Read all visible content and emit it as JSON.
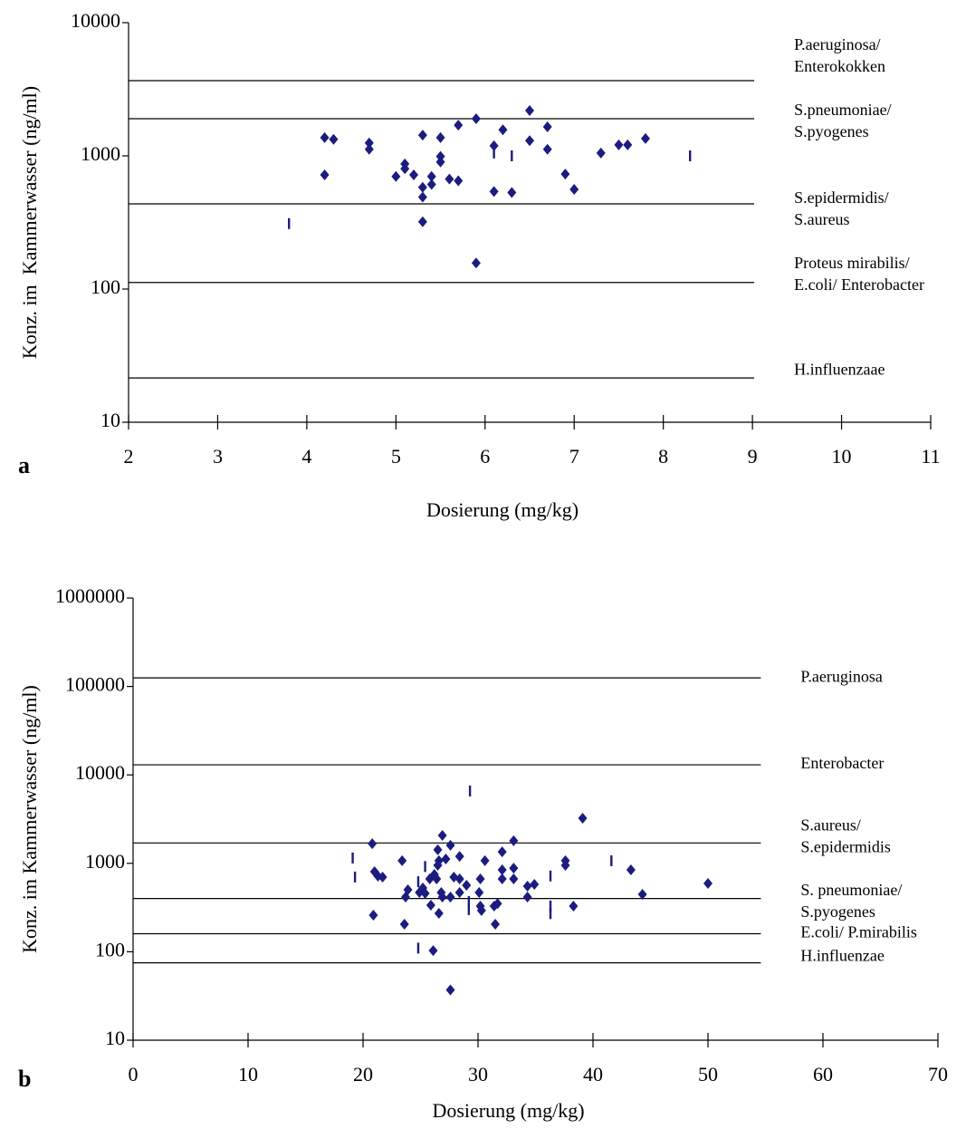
{
  "chart_data": [
    {
      "type": "scatter",
      "panel_label": "a",
      "x_label": "Dosierung (mg/kg)",
      "y_label": "Konz. im  Kammerwasser (ng/ml)",
      "y_scale": "log",
      "xlim": [
        2,
        11
      ],
      "ylim": [
        10,
        10000
      ],
      "xticks": [
        2,
        3,
        4,
        5,
        6,
        7,
        8,
        9,
        10,
        11
      ],
      "yticks": [
        10,
        100,
        1000,
        10000
      ],
      "series": [
        {
          "marker": "diamond",
          "color": "#1c1c80",
          "x": [
            4.2,
            4.2,
            4.3,
            4.7,
            4.7,
            5.0,
            5.1,
            5.1,
            5.2,
            5.3,
            5.3,
            5.3,
            5.3,
            5.4,
            5.4,
            5.5,
            5.5,
            5.5,
            5.6,
            5.7,
            5.7,
            5.9,
            5.9,
            6.1,
            6.1,
            6.2,
            6.3,
            6.5,
            6.5,
            6.7,
            6.7,
            6.9,
            7.0,
            7.3,
            7.5,
            7.6,
            7.8
          ],
          "values": [
            1370,
            720,
            1330,
            1250,
            1120,
            700,
            870,
            800,
            720,
            1430,
            580,
            490,
            320,
            700,
            610,
            1370,
            990,
            900,
            670,
            650,
            1700,
            1900,
            157,
            1190,
            540,
            1570,
            530,
            2190,
            1300,
            1650,
            1120,
            730,
            560,
            1050,
            1210,
            1210,
            1350
          ]
        },
        {
          "marker": "dash",
          "color": "#1c1c80",
          "x": [
            3.8,
            6.1,
            6.3,
            8.3
          ],
          "values": [
            310,
            1050,
            1000,
            1000
          ]
        }
      ],
      "reference_lines": [
        {
          "value": 3670,
          "label": [
            "P.aeruginosa/",
            "Enterokokken"
          ]
        },
        {
          "value": 1900,
          "label": [
            "S.pneumoniae/",
            "S.pyogenes"
          ]
        },
        {
          "value": 436,
          "label": [
            "S.epidermidis/",
            "S.aureus"
          ]
        },
        {
          "value": 112,
          "label": [
            "Proteus mirabilis/",
            "E.coli/ Enterobacter"
          ]
        },
        {
          "value": 21.5,
          "label": [
            "H.influenzaae"
          ]
        }
      ]
    },
    {
      "type": "scatter",
      "panel_label": "b",
      "x_label": "Dosierung (mg/kg)",
      "y_label": "Konz. im Kammerwasser (ng/ml)",
      "y_scale": "log",
      "xlim": [
        0,
        70
      ],
      "ylim": [
        10,
        1000000
      ],
      "xticks": [
        0,
        10,
        20,
        30,
        40,
        50,
        60,
        70
      ],
      "yticks": [
        10,
        100,
        1000,
        10000,
        100000,
        1000000
      ],
      "series": [
        {
          "marker": "diamond",
          "color": "#1c1c80",
          "x": [
            20.8,
            21.0,
            21.3,
            21.7,
            20.9,
            23.4,
            23.7,
            23.9,
            23.6,
            24.9,
            25.2,
            25.4,
            25.8,
            25.9,
            26.1,
            26.2,
            26.4,
            26.5,
            26.5,
            26.6,
            26.6,
            26.8,
            26.9,
            26.9,
            27.2,
            27.6,
            27.6,
            27.6,
            27.9,
            28.4,
            28.4,
            28.4,
            29.0,
            30.1,
            30.2,
            30.2,
            30.3,
            30.6,
            31.4,
            31.5,
            31.7,
            32.1,
            32.1,
            32.1,
            33.1,
            33.1,
            33.1,
            34.3,
            34.3,
            34.9,
            37.6,
            37.6,
            39.1,
            38.3,
            43.3,
            44.3,
            50.0
          ],
          "values": [
            1670,
            805,
            716,
            698,
            259,
            1070,
            416,
            502,
            205,
            468,
            526,
            457,
            667,
            336,
            103,
            750,
            667,
            949,
            1420,
            1070,
            272,
            468,
            2070,
            416,
            1120,
            416,
            1600,
            37,
            698,
            1200,
            667,
            468,
            565,
            468,
            667,
            328,
            293,
            1070,
            328,
            205,
            350,
            1350,
            843,
            667,
            1800,
            883,
            667,
            552,
            416,
            578,
            1070,
            949,
            3240,
            328,
            843,
            446,
            593
          ]
        },
        {
          "marker": "dash",
          "color": "#1c1c80",
          "x": [
            19.1,
            19.3,
            29.3,
            24.8,
            25.4,
            29.2,
            29.2,
            24.8,
            36.3,
            36.3,
            36.3,
            41.6
          ],
          "values": [
            1150,
            700,
            6580,
            620,
            920,
            370,
            300,
            110,
            720,
            330,
            270,
            1070
          ]
        }
      ],
      "reference_lines": [
        {
          "value": 125000,
          "label": [
            "P.aeruginosa"
          ]
        },
        {
          "value": 13000,
          "label": [
            "Enterobacter"
          ]
        },
        {
          "value": 1700,
          "label": [
            "S.aureus/",
            "S.epidermidis"
          ]
        },
        {
          "value": 400,
          "label": [
            "S. pneumoniae/",
            "S.pyogenes"
          ]
        },
        {
          "value": 160,
          "label": [
            "E.coli/ P.mirabilis"
          ]
        },
        {
          "value": 75,
          "label": [
            "H.influenzae"
          ]
        }
      ]
    }
  ]
}
